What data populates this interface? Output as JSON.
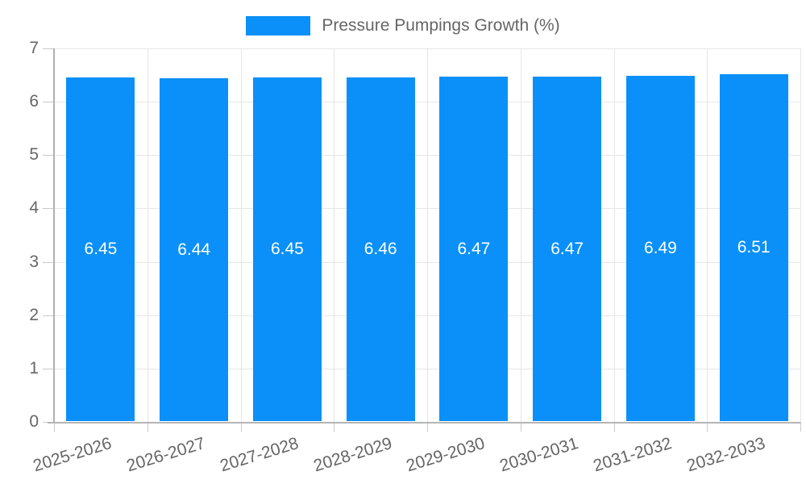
{
  "legend": {
    "label": "Pressure Pumpings Growth (%)",
    "swatch_color": "#0a90f8"
  },
  "chart_data": {
    "type": "bar",
    "title": "Pressure Pumpings Growth (%)",
    "categories": [
      "2025-2026",
      "2026-2027",
      "2027-2028",
      "2028-2029",
      "2029-2030",
      "2030-2031",
      "2031-2032",
      "2032-2033"
    ],
    "values": [
      6.45,
      6.44,
      6.45,
      6.46,
      6.47,
      6.47,
      6.49,
      6.51
    ],
    "value_labels": [
      "6.45",
      "6.44",
      "6.45",
      "6.46",
      "6.47",
      "6.47",
      "6.49",
      "6.51"
    ],
    "xlabel": "",
    "ylabel": "",
    "ylim": [
      0,
      7
    ],
    "yticks": [
      0,
      1,
      2,
      3,
      4,
      5,
      6,
      7
    ],
    "grid": true,
    "legend_position": "top",
    "bar_color": "#0a90f8",
    "value_label_color": "#ffffff",
    "tick_label_color": "#666666",
    "gridline_color": "#e6e6e6"
  }
}
